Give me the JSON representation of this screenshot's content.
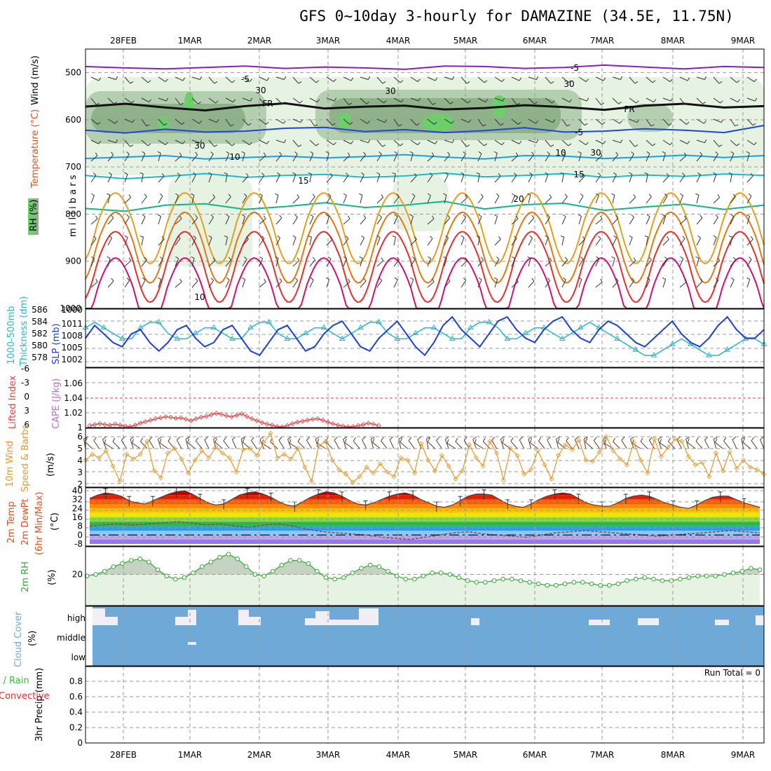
{
  "title": "GFS 0~10day 3-hourly for DAMAZINE (34.5E, 11.75N)",
  "colors": {
    "rh_fill": "#e6f2e2",
    "rh_mid": "#b4cfb0",
    "rh_dark": "#8fb28a",
    "rh_high": "#6cd06a",
    "temp_purple": "#8a1fb8",
    "temp_blue": "#1f46d6",
    "temp_lightblue": "#1ea0e0",
    "temp_cyan": "#1bbcc8",
    "temp_green": "#12b48a",
    "temp_orange": "#e0a020",
    "temp_darkorange": "#e07818",
    "temp_red": "#e03030",
    "temp_magenta": "#d01070",
    "slp": "#1f3fd0",
    "thickness": "#2ab8c8",
    "lifted": "#e04040",
    "wind10m": "#e09a30",
    "barbs": "#5a3a2a",
    "cloud": "#6ea9d8",
    "rh2m": "#38a838",
    "precip_green": "#38b838",
    "precip_red": "#e03030",
    "rh_label": "#2ca02c",
    "temp_label": "#e05020",
    "cape_label": "#c070c0"
  },
  "x_axis": {
    "date_labels": [
      "28FEB",
      "1MAR",
      "2MAR",
      "3MAR",
      "4MAR",
      "5MAR",
      "6MAR",
      "7MAR",
      "8MAR",
      "9MAR"
    ]
  },
  "chart_data": [
    {
      "type": "contour",
      "panel": "upper_air",
      "y_unit": "milli bars",
      "ylim": [
        1000,
        450
      ],
      "y_ticks": [
        "500",
        "600",
        "700",
        "800",
        "900",
        "1000"
      ],
      "ylabel_rh": "RH (%)",
      "ylabel_temp": "Temperature (°C)",
      "ylabel_wind": "Wind (m/s)",
      "ylabel_pressure": "m i l l i b a r s",
      "contour_labels": [
        "-5",
        "-5",
        "FR",
        "FR",
        "-5",
        "10",
        "10",
        "15",
        "15",
        "20",
        "30",
        "30",
        "30",
        "30",
        "30",
        "10"
      ],
      "isotherms_C": [
        {
          "name": "-5",
          "p": [
            487,
            490,
            492,
            489,
            486,
            491,
            488,
            490,
            493,
            486,
            487,
            491,
            489,
            484,
            488,
            492,
            487,
            489
          ]
        },
        {
          "name": "FR",
          "p": [
            572,
            566,
            574,
            580,
            571,
            565,
            576,
            572,
            570,
            578,
            575,
            569,
            573,
            579,
            570,
            566,
            574,
            571
          ]
        },
        {
          "name": "5",
          "p": [
            622,
            628,
            620,
            626,
            624,
            618,
            616,
            625,
            621,
            627,
            623,
            617,
            626,
            624,
            619,
            622,
            627,
            612
          ]
        },
        {
          "name": "10",
          "p": [
            682,
            679,
            676,
            683,
            680,
            677,
            681,
            678,
            674,
            679,
            683,
            676,
            677,
            682,
            679,
            675,
            680,
            676
          ]
        },
        {
          "name": "15",
          "p": [
            718,
            725,
            720,
            714,
            722,
            718,
            716,
            722,
            719,
            713,
            721,
            718,
            714,
            722,
            717,
            720,
            715,
            718
          ]
        },
        {
          "name": "20",
          "p": [
            788,
            794,
            781,
            778,
            790,
            784,
            776,
            786,
            781,
            773,
            789,
            780,
            777,
            792,
            785,
            779,
            790,
            781
          ]
        }
      ]
    },
    {
      "type": "line",
      "panel": "slp_thickness",
      "series": [
        {
          "name": "SLP (mb)",
          "axis": "right",
          "values": [
            1006,
            1009,
            1007,
            1005,
            1004,
            1007,
            1008,
            1005,
            1003,
            1005,
            1008,
            1009,
            1006,
            1004,
            1005,
            1008,
            1009,
            1006,
            1003,
            1002,
            1005,
            1008,
            1009,
            1006,
            1003,
            1004,
            1007,
            1009,
            1010,
            1007,
            1004,
            1003,
            1006,
            1008,
            1010,
            1007,
            1004,
            1002,
            1005,
            1009,
            1011,
            1008,
            1006,
            1004,
            1007,
            1010,
            1011,
            1008,
            1006,
            1005,
            1008,
            1010,
            1011,
            1008,
            1006,
            1005,
            1008,
            1010,
            1009,
            1007,
            1005,
            1004,
            1006,
            1008,
            1010,
            1007,
            1005,
            1004,
            1006,
            1009,
            1011,
            1008,
            1006,
            1006,
            1008
          ]
        },
        {
          "name": "1000-500mb Thickness (dm)",
          "axis": "left",
          "values": [
            583,
            584,
            583,
            582,
            581,
            581,
            583,
            584,
            584,
            582,
            581,
            581,
            582,
            583,
            583,
            582,
            581,
            581,
            583,
            584,
            584,
            582,
            581,
            581,
            582,
            583,
            583,
            582,
            581,
            582,
            583,
            584,
            584,
            582,
            581,
            581,
            582,
            583,
            583,
            582,
            581,
            581,
            583,
            584,
            584,
            583,
            581,
            581,
            582,
            583,
            583,
            582,
            581,
            582,
            583,
            584,
            583,
            582,
            581,
            580,
            579,
            578,
            578,
            579,
            580,
            581,
            580,
            579,
            578,
            578,
            579,
            580,
            581,
            581,
            580
          ]
        }
      ],
      "y_ticks_left": [
        "586",
        "584",
        "582",
        "580",
        "578"
      ],
      "y_ticks_right": [
        "1011",
        "1008",
        "1005",
        "1002"
      ],
      "y_tick_bottom_pair": "1000"
    },
    {
      "type": "line",
      "panel": "stability",
      "series": [
        {
          "name": "Lifted Index",
          "values": [
            5.6,
            5.4,
            5.2,
            5.4,
            5.5,
            5.3,
            5.5,
            5.7,
            5.8,
            5.5,
            5.1,
            4.8,
            4.5,
            4.2,
            4.0,
            3.8,
            3.9,
            4.1,
            4.0,
            4.3,
            4.6,
            4.2,
            3.9,
            3.7,
            3.4,
            3.1,
            3.3,
            3.6,
            3.8,
            3.5,
            3.2,
            3.7,
            4.2,
            4.6,
            5.0,
            5.3,
            5.5,
            5.8,
            5.9,
            5.6,
            5.2,
            4.9,
            4.7,
            4.5,
            4.3,
            4.2,
            4.5,
            4.9,
            5.2,
            5.5,
            5.7,
            5.9,
            5.8,
            5.6,
            5.4,
            5.1,
            5.3,
            5.6
          ]
        }
      ],
      "y_ticks_left": [
        "-6",
        "-3",
        "0",
        "3",
        "6"
      ],
      "y_ticks_right": [
        "1.06",
        "1.04",
        "1.02",
        "1"
      ],
      "ylabel_left": "Lifted Index",
      "ylabel_right": "CAPE (J/kg)"
    },
    {
      "type": "line",
      "panel": "wind10m",
      "series": [
        {
          "name": "10m Wind Speed",
          "values": [
            4.0,
            4.5,
            4.2,
            4.8,
            3.5,
            2.2,
            4.5,
            4.1,
            4.5,
            5.6,
            3.1,
            2.5,
            4.6,
            5.0,
            4.1,
            2.9,
            4.0,
            4.8,
            4.2,
            5.1,
            4.6,
            4.2,
            3.0,
            4.9,
            5.0,
            4.4,
            5.5,
            6.3,
            4.2,
            4.5,
            4.1,
            5.0,
            3.4,
            2.2,
            5.2,
            5.6,
            4.0,
            3.2,
            2.8,
            2.1,
            2.6,
            3.4,
            2.9,
            3.7,
            3.0,
            2.6,
            4.2,
            4.0,
            2.9,
            5.4,
            4.0,
            3.1,
            4.4,
            3.5,
            2.4,
            3.1,
            5.3,
            4.2,
            3.5,
            5.6,
            4.6,
            2.3,
            5.0,
            4.4,
            2.8,
            3.2,
            4.8,
            3.6,
            2.4,
            4.4,
            5.3,
            4.9,
            5.7,
            4.0,
            3.9,
            4.7,
            6.0,
            4.8,
            4.1,
            3.6,
            5.5,
            4.0,
            2.9,
            5.8,
            4.3,
            5.1,
            5.8,
            5.6,
            4.3,
            3.6,
            3.8,
            2.6,
            4.6,
            3.1,
            4.7,
            3.3,
            4.0,
            3.4,
            3.2,
            2.8
          ]
        }
      ],
      "y_ticks": [
        "6",
        "5",
        "4",
        "3",
        "2"
      ],
      "ylabel_left": "10m Wind",
      "ylabel_mid": "Speed & Barbs",
      "ylabel_unit": "(m/s)"
    },
    {
      "type": "area",
      "panel": "temp2m",
      "series": [
        {
          "name": "2m Temp",
          "values": [
            33,
            36,
            38,
            37,
            35,
            31,
            29,
            28,
            31,
            34,
            37,
            39,
            40,
            37,
            33,
            29,
            27,
            28,
            32,
            36,
            38,
            39,
            37,
            34,
            30,
            27,
            26,
            30,
            34,
            37,
            39,
            38,
            35,
            31,
            28,
            27,
            29,
            32,
            35,
            37,
            38,
            36,
            32,
            29,
            26,
            25,
            27,
            31,
            35,
            37,
            37,
            36,
            32,
            28,
            26,
            25,
            28,
            32,
            35,
            37,
            38,
            37,
            33,
            29,
            27,
            26,
            26,
            29,
            33,
            35,
            36,
            35,
            32,
            29,
            27,
            25,
            24,
            27,
            31,
            34,
            35,
            35,
            32,
            29,
            27,
            25
          ]
        },
        {
          "name": "2m DewPt",
          "values": [
            8,
            9,
            10,
            9,
            10,
            11,
            12,
            11,
            9,
            10,
            8,
            7,
            9,
            10,
            8,
            5,
            3,
            2,
            1,
            0,
            -2,
            -3,
            -4,
            -2,
            0,
            2,
            3,
            1,
            0,
            -1,
            -2,
            0,
            2,
            3,
            4,
            3,
            2,
            1,
            0,
            -1,
            0,
            1,
            2,
            3,
            4,
            3,
            2
          ]
        }
      ],
      "y_ticks": [
        "40",
        "32",
        "24",
        "16",
        "8",
        "0",
        "-8"
      ],
      "ylabel": "2m Temp",
      "ylabel2": "2m DewPt",
      "ylabel3": "(6hr Min/Max)",
      "ylabel_unit": "(°C)"
    },
    {
      "type": "area",
      "panel": "rh2m",
      "series": [
        {
          "name": "2m RH",
          "values": [
            19,
            20,
            22,
            25,
            27,
            29,
            30,
            28,
            23,
            19,
            17,
            18,
            21,
            25,
            28,
            31,
            33,
            30,
            25,
            20,
            19,
            22,
            26,
            29,
            29,
            27,
            22,
            18,
            17,
            18,
            21,
            24,
            26,
            25,
            22,
            19,
            17,
            17,
            19,
            21,
            21,
            20,
            18,
            16,
            15,
            15,
            16,
            17,
            17,
            16,
            15,
            14,
            13,
            13,
            14,
            15,
            15,
            14,
            13,
            13,
            14,
            16,
            17,
            18,
            17,
            16,
            16,
            17,
            18,
            19,
            19,
            19,
            20,
            21,
            22,
            24,
            23
          ]
        }
      ],
      "y_ticks": [
        "20"
      ],
      "ylabel": "2m RH",
      "ylabel_unit": "(%)"
    },
    {
      "type": "heatmap",
      "panel": "cloud",
      "y_ticks": [
        "high",
        "middle",
        "low"
      ],
      "ylabel": "Cloud Cover",
      "ylabel_unit": "(%)"
    },
    {
      "type": "bar",
      "panel": "precip",
      "values": [],
      "ylim": [
        0,
        1
      ],
      "y_ticks": [
        "0",
        "0.2",
        "0.4",
        "0.6",
        "0.8"
      ],
      "ylabel": "3hr Precip (mm)",
      "ylabel_total": "Total / Rain",
      "ylabel_conv": "Convective",
      "run_total": "Run Total = 0"
    }
  ]
}
